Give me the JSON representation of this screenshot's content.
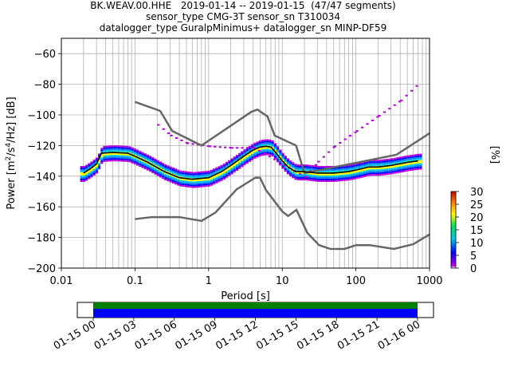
{
  "title": {
    "line1": "BK.WEAV.00.HHE   2019-01-14 -- 2019-01-15  (47/47 segments)",
    "line2": "sensor_type CMG-3T sensor_sn T310034",
    "line3": "datalogger_type GuralpMinimus+ datalogger_sn MINP-DF59"
  },
  "chart_data": [
    {
      "type": "heatmap",
      "title": "BK.WEAV.00.HHE   2019-01-14 -- 2019-01-15  (47/47 segments)",
      "xlabel": "Period [s]",
      "ylabel": "Power [m²/s⁴/Hz] [dB]",
      "xscale": "log",
      "xlim": [
        0.01,
        1000
      ],
      "ylim": [
        -200,
        -50
      ],
      "xticks": [
        0.01,
        0.1,
        1,
        10,
        100,
        1000
      ],
      "xtick_labels": [
        "0.01",
        "0.1",
        "1",
        "10",
        "100",
        "1000"
      ],
      "yticks": [
        -200,
        -180,
        -160,
        -140,
        -120,
        -100,
        -80,
        -60
      ],
      "ytick_labels": [
        "−200",
        "−180",
        "−160",
        "−140",
        "−120",
        "−100",
        "−80",
        "−60"
      ],
      "grid": true,
      "colorbar": {
        "label": "[%]",
        "range": [
          0,
          30
        ],
        "ticks": [
          0,
          5,
          10,
          15,
          20,
          25,
          30
        ],
        "tick_labels": [
          "0",
          "5",
          "10",
          "15",
          "20",
          "25",
          "30"
        ]
      },
      "noise_model_high": {
        "x": [
          0.1,
          0.22,
          0.32,
          0.8,
          3.8,
          4.6,
          6.3,
          7.9,
          15.4,
          20,
          354.8,
          1000
        ],
        "y": [
          -91.5,
          -97.4,
          -110.5,
          -120,
          -98,
          -96.5,
          -101,
          -113.5,
          -120,
          -138,
          -126,
          -112
        ]
      },
      "noise_model_low": {
        "x": [
          0.1,
          0.17,
          0.4,
          0.8,
          1.24,
          2.4,
          4.3,
          5,
          6,
          10,
          12,
          15.6,
          21.9,
          31.6,
          45,
          70,
          101,
          154,
          328,
          600,
          1000
        ],
        "y": [
          -168,
          -166.7,
          -166.7,
          -169.2,
          -163.7,
          -148.6,
          -141,
          -141,
          -149,
          -163,
          -166,
          -162,
          -177,
          -185,
          -187.5,
          -187.5,
          -185,
          -185,
          -187.5,
          -184.4,
          -178
        ]
      },
      "median_curve": {
        "x": [
          0.02,
          0.025,
          0.03,
          0.035,
          0.05,
          0.08,
          0.1,
          0.15,
          0.25,
          0.4,
          0.6,
          1,
          1.5,
          2,
          3,
          4,
          5,
          6,
          7,
          8,
          10,
          12,
          15,
          20,
          30,
          50,
          80,
          100,
          150,
          200,
          300,
          500,
          700
        ],
        "y": [
          -138,
          -135,
          -132,
          -125,
          -124.5,
          -125,
          -127,
          -131,
          -137,
          -141,
          -142,
          -141,
          -137,
          -133,
          -127,
          -123,
          -121,
          -120.5,
          -121,
          -124,
          -130,
          -134,
          -137,
          -137,
          -138,
          -138,
          -137,
          -136,
          -134,
          -134,
          -133,
          -131,
          -130
        ]
      },
      "odd_spread": {
        "x": [
          0.2,
          0.3,
          0.5,
          1,
          2,
          4,
          20,
          30,
          50,
          100,
          200,
          400,
          700
        ],
        "y": [
          -106,
          -113,
          -118,
          -120,
          -121,
          -121,
          -140,
          -130,
          -120,
          -110,
          -100,
          -90,
          -79
        ]
      },
      "colorbar_colors": [
        "#ffffff",
        "#b800e0",
        "#0000ff",
        "#00c8e6",
        "#00e060",
        "#ffff00",
        "#ff8000",
        "#d00000"
      ],
      "median_color": "#000000",
      "noise_model_color": "#666666"
    },
    {
      "type": "timeline",
      "xtick_labels": [
        "01-15 00",
        "01-15 03",
        "01-15 06",
        "01-15 09",
        "01-15 12",
        "01-15 15",
        "01-15 18",
        "01-15 21",
        "01-16 00"
      ],
      "data_available_color": "#008000",
      "psd_used_color": "#0000ff"
    }
  ]
}
